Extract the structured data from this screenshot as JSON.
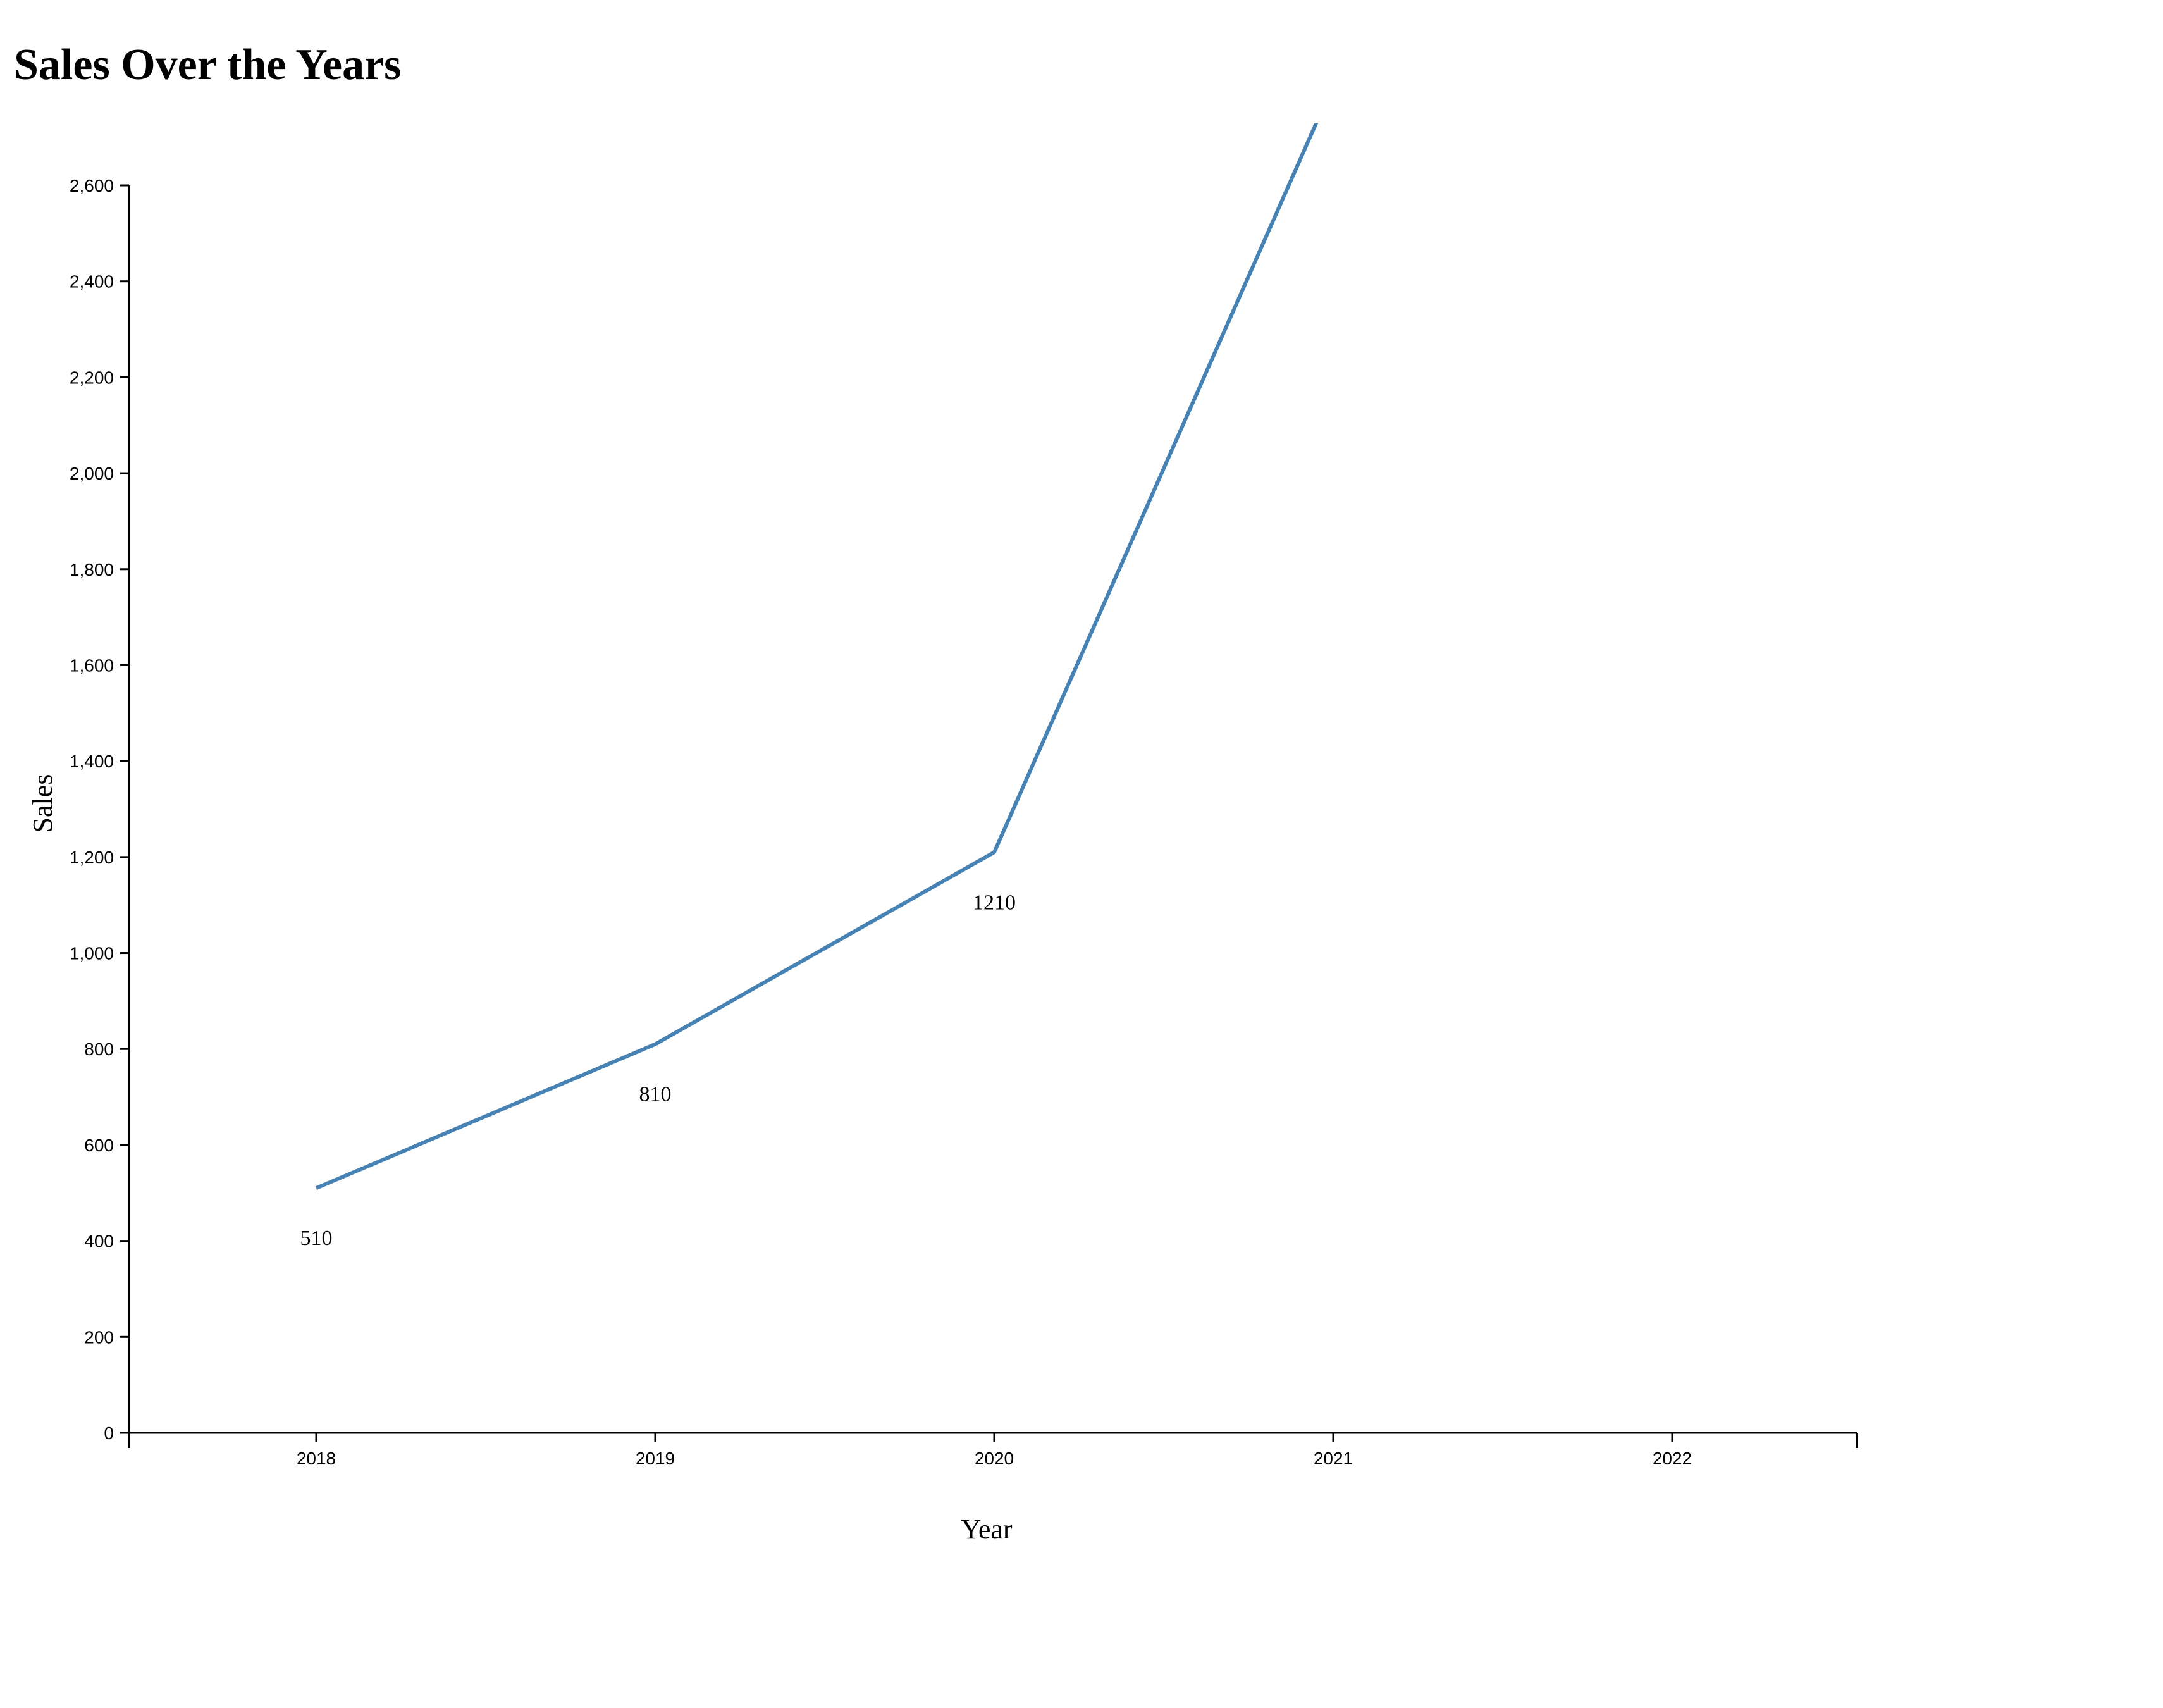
{
  "chart_data": {
    "type": "line",
    "title": "Sales Over the Years",
    "xlabel": "Year",
    "ylabel": "Sales",
    "x": [
      "2018",
      "2019",
      "2020",
      "2021",
      "2022"
    ],
    "series": [
      {
        "values": [
          510,
          810,
          1210,
          2810,
          null
        ]
      }
    ],
    "data_labels": [
      "510",
      "810",
      "1210"
    ],
    "ylim": [
      0,
      2600
    ],
    "yticks": [
      0,
      200,
      400,
      600,
      800,
      1000,
      1200,
      1400,
      1600,
      1800,
      2000,
      2200,
      2400,
      2600
    ],
    "ytick_labels": [
      "0",
      "200",
      "400",
      "600",
      "800",
      "1,000",
      "1,200",
      "1,400",
      "1,600",
      "1,800",
      "2,000",
      "2,200",
      "2,400",
      "2,600"
    ],
    "xtick_labels": [
      "2018",
      "2019",
      "2020",
      "2021",
      "2022"
    ],
    "line_color": "#4682b4",
    "grid": false,
    "legend": "none"
  }
}
